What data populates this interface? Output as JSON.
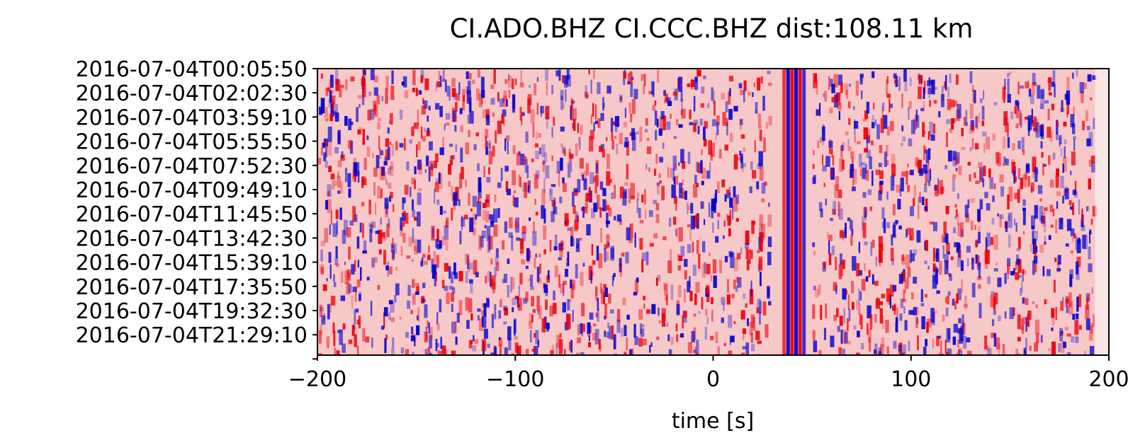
{
  "chart_data": {
    "type": "heatmap",
    "title": "CI.ADO.BHZ  CI.CCC.BHZ  dist:108.11 km",
    "xlabel": "time [s]",
    "ylabel": "",
    "xlim": [
      -200,
      200
    ],
    "xticks": [
      -200,
      -100,
      0,
      100,
      200
    ],
    "xtick_labels": [
      "−200",
      "−100",
      "0",
      "100",
      "200"
    ],
    "yticks": [
      "2016-07-04T00:05:50",
      "2016-07-04T02:02:30",
      "2016-07-04T03:59:10",
      "2016-07-04T05:55:50",
      "2016-07-04T07:52:30",
      "2016-07-04T09:49:10",
      "2016-07-04T11:45:50",
      "2016-07-04T13:42:30",
      "2016-07-04T15:39:10",
      "2016-07-04T17:35:50",
      "2016-07-04T19:32:30",
      "2016-07-04T21:29:10"
    ],
    "colormap": "bwr",
    "colors": {
      "positive": "#e8000b",
      "negative": "#0000d0",
      "zero": "#ffffff",
      "background": "#f7c8c8"
    },
    "coherent_arrival_s": [
      36,
      40,
      44
    ],
    "grid": false
  }
}
